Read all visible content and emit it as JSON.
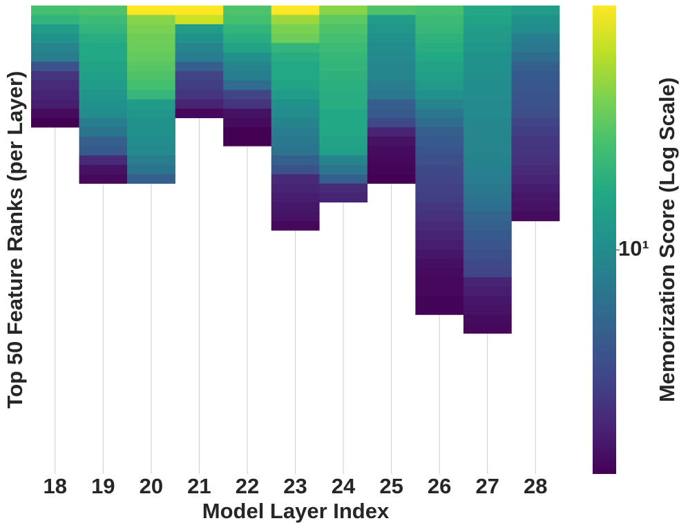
{
  "chart_data": {
    "type": "heatmap",
    "xlabel": "Model Layer Index",
    "ylabel": "Top 50 Feature Ranks (per Layer)",
    "colorbar_label": "Memorization Score (Log Scale)",
    "colormap": "viridis",
    "log_color": true,
    "categories": [
      "18",
      "19",
      "20",
      "21",
      "22",
      "23",
      "24",
      "25",
      "26",
      "27",
      "28"
    ],
    "ylim": [
      0,
      50
    ],
    "zlim": [
      2.5,
      45.4
    ],
    "zticks": [
      {
        "value": 10,
        "label": "10¹"
      }
    ],
    "values": [
      [
        19.0,
        16.5,
        12.3,
        10.65,
        9.2,
        8.45,
        5.17,
        3.86,
        3.53,
        3.34,
        3.16,
        2.73,
        2.5
      ],
      [
        20.1,
        17.9,
        16.5,
        15.1,
        14.2,
        14.2,
        13.4,
        12.7,
        12.3,
        11.3,
        10.65,
        10.05,
        8.45,
        7.5,
        5.97,
        5.64,
        3.53,
        2.88,
        2.64
      ],
      [
        45.4,
        26.9,
        25.4,
        23.9,
        23.3,
        22.6,
        21.3,
        20.1,
        19.0,
        16.9,
        12.3,
        11.3,
        10.65,
        10.65,
        10.05,
        9.8,
        8.45,
        7.5,
        5.97
      ],
      [
        45.4,
        36.0,
        12.3,
        10.65,
        9.2,
        8.45,
        5.97,
        4.47,
        4.21,
        3.86,
        3.34,
        2.64
      ],
      [
        20.1,
        19.0,
        16.5,
        15.1,
        13.4,
        10.65,
        9.2,
        8.45,
        6.9,
        4.47,
        3.86,
        2.88,
        2.73,
        2.5,
        2.5
      ],
      [
        45.4,
        29.4,
        25.4,
        23.9,
        16.5,
        15.1,
        14.2,
        14.2,
        13.4,
        12.3,
        10.65,
        10.05,
        9.2,
        8.45,
        7.98,
        7.5,
        5.97,
        5.17,
        3.53,
        3.34,
        3.16,
        2.98,
        2.88,
        2.64
      ],
      [
        26.9,
        21.9,
        20.1,
        19.0,
        17.9,
        16.9,
        16.5,
        16.0,
        15.5,
        15.1,
        15.1,
        14.2,
        14.2,
        14.2,
        13.4,
        12.7,
        9.2,
        7.98,
        5.97,
        3.53,
        3.34
      ],
      [
        20.1,
        12.3,
        11.3,
        10.65,
        10.05,
        9.8,
        9.5,
        9.2,
        8.45,
        7.98,
        5.97,
        5.64,
        4.75,
        3.34,
        2.88,
        2.73,
        2.64,
        2.57,
        2.5
      ],
      [
        19.0,
        17.9,
        16.9,
        16.0,
        15.1,
        14.2,
        13.4,
        12.7,
        12.0,
        10.65,
        9.2,
        7.98,
        6.9,
        5.97,
        5.64,
        5.33,
        5.03,
        4.75,
        4.47,
        4.34,
        4.21,
        3.97,
        3.75,
        3.53,
        3.34,
        3.16,
        2.98,
        2.8,
        2.73,
        2.64,
        2.64,
        2.57,
        2.57
      ],
      [
        14.2,
        13.4,
        12.3,
        12.0,
        11.3,
        10.65,
        10.65,
        10.35,
        10.05,
        10.05,
        9.8,
        9.8,
        9.5,
        9.5,
        9.2,
        9.2,
        8.96,
        8.7,
        8.45,
        7.98,
        7.5,
        7.1,
        6.33,
        5.97,
        5.64,
        5.33,
        5.03,
        4.75,
        4.47,
        3.34,
        3.16,
        2.98,
        2.88,
        2.73,
        2.64
      ],
      [
        12.3,
        10.65,
        10.05,
        8.45,
        7.98,
        6.9,
        5.97,
        5.64,
        5.49,
        5.33,
        5.17,
        5.03,
        4.47,
        4.21,
        3.97,
        3.86,
        3.75,
        3.53,
        3.34,
        3.16,
        2.98,
        2.88,
        2.73
      ]
    ]
  }
}
